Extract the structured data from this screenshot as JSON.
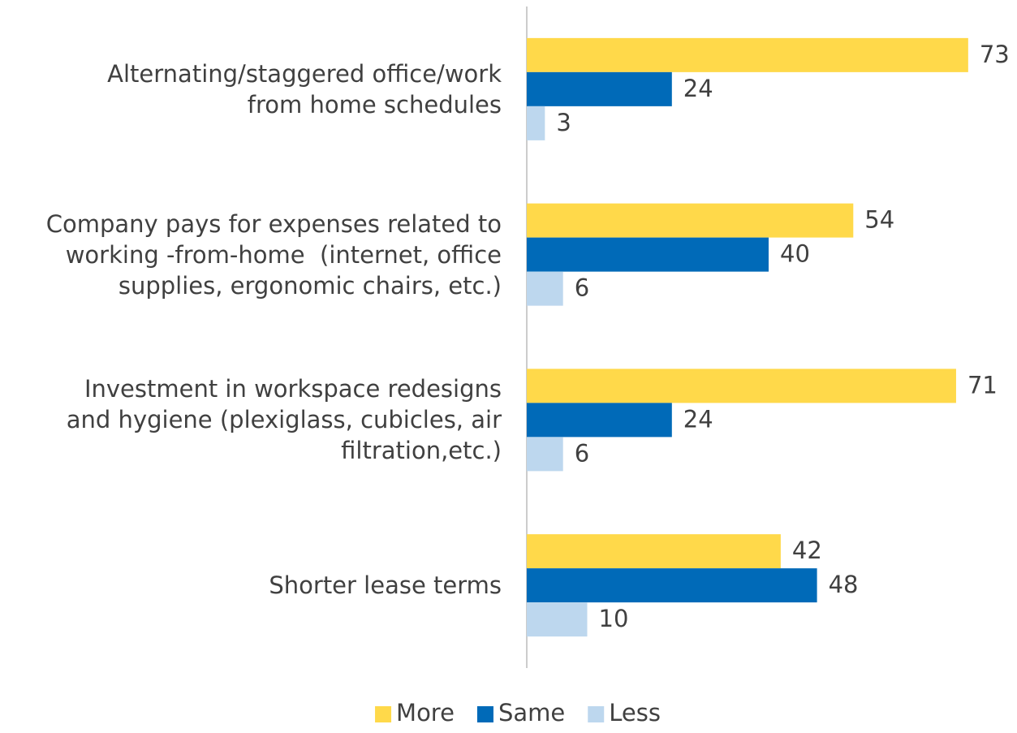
{
  "chart_data": {
    "type": "bar",
    "orientation": "horizontal",
    "categories": [
      "Alternating/staggered office/work\nfrom home schedules",
      "Company pays for expenses related to\nworking -from-home  (internet, office\nsupplies, ergonomic chairs, etc.)",
      "Investment in workspace redesigns\nand hygiene (plexiglass, cubicles, air\nfiltration,etc.)",
      "Shorter lease terms"
    ],
    "series": [
      {
        "name": "More",
        "color": "#FFD94A",
        "values": [
          73,
          54,
          71,
          42
        ]
      },
      {
        "name": "Same",
        "color": "#006AB8",
        "values": [
          24,
          40,
          24,
          48
        ]
      },
      {
        "name": "Less",
        "color": "#BDD7EE",
        "values": [
          3,
          6,
          6,
          10
        ]
      }
    ],
    "xlim": [
      0,
      80
    ],
    "legend": "bottom"
  }
}
